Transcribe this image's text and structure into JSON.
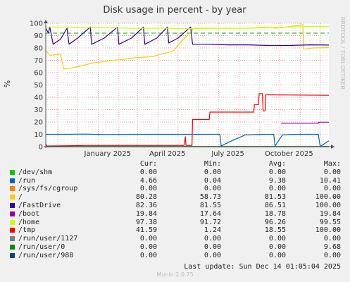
{
  "chart_data": {
    "type": "line",
    "title": "Disk usage in percent - by year",
    "ylabel": "%",
    "side_label": "RRDTOOL / TOBI OETIKER",
    "ylim": [
      0,
      100
    ],
    "yticks": [
      0,
      10,
      20,
      30,
      40,
      50,
      60,
      70,
      80,
      90,
      100
    ],
    "xlim": [
      "2024-10-14",
      "2025-12-14"
    ],
    "xticks": [
      {
        "label": "January 2025",
        "date": "2025-01-15"
      },
      {
        "label": "April 2025",
        "date": "2025-04-15"
      },
      {
        "label": "July 2025",
        "date": "2025-07-15"
      },
      {
        "label": "October 2025",
        "date": "2025-10-15"
      }
    ],
    "warning_line": 92,
    "series": [
      {
        "name": "/dev/shm",
        "color": "#00cc00",
        "points": [
          [
            "2024-10-14",
            0
          ],
          [
            "2025-12-14",
            0
          ]
        ]
      },
      {
        "name": "/run",
        "color": "#0066b3",
        "points": [
          [
            "2024-10-14",
            10
          ],
          [
            "2024-11-10",
            10
          ],
          [
            "2024-12-10",
            10.2
          ],
          [
            "2025-01-15",
            9.8
          ],
          [
            "2025-02-15",
            10
          ],
          [
            "2025-03-20",
            10
          ],
          [
            "2025-04-20",
            10
          ],
          [
            "2025-05-20",
            10
          ],
          [
            "2025-06-20",
            10
          ],
          [
            "2025-07-03",
            10
          ],
          [
            "2025-07-05",
            0.5
          ],
          [
            "2025-07-20",
            4.5
          ],
          [
            "2025-08-10",
            9.5
          ],
          [
            "2025-09-10",
            10
          ],
          [
            "2025-09-22",
            10
          ],
          [
            "2025-09-24",
            0.5
          ],
          [
            "2025-10-05",
            9.5
          ],
          [
            "2025-10-25",
            10
          ],
          [
            "2025-11-20",
            10
          ],
          [
            "2025-11-28",
            10
          ],
          [
            "2025-12-01",
            0.2
          ],
          [
            "2025-12-14",
            4.66
          ]
        ]
      },
      {
        "name": "/sys/fs/cgroup",
        "color": "#ff8000",
        "points": [
          [
            "2024-10-14",
            0
          ],
          [
            "2025-12-14",
            0
          ]
        ]
      },
      {
        "name": "/",
        "color": "#ffcc00",
        "points": [
          [
            "2024-10-14",
            78
          ],
          [
            "2024-10-20",
            74
          ],
          [
            "2024-11-05",
            75
          ],
          [
            "2024-11-10",
            63
          ],
          [
            "2024-11-25",
            64
          ],
          [
            "2024-12-10",
            66
          ],
          [
            "2024-12-25",
            68
          ],
          [
            "2025-01-10",
            69
          ],
          [
            "2025-01-25",
            70
          ],
          [
            "2025-02-10",
            71
          ],
          [
            "2025-02-25",
            72
          ],
          [
            "2025-03-10",
            72.5
          ],
          [
            "2025-03-25",
            73
          ],
          [
            "2025-04-05",
            75
          ],
          [
            "2025-04-15",
            76
          ],
          [
            "2025-04-25",
            78
          ],
          [
            "2025-05-05",
            85
          ],
          [
            "2025-05-15",
            90
          ],
          [
            "2025-05-25",
            96
          ],
          [
            "2025-06-15",
            96
          ],
          [
            "2025-07-15",
            96
          ],
          [
            "2025-08-15",
            96
          ],
          [
            "2025-09-10",
            97
          ],
          [
            "2025-09-25",
            96
          ],
          [
            "2025-10-10",
            97
          ],
          [
            "2025-10-25",
            98
          ],
          [
            "2025-11-05",
            99
          ],
          [
            "2025-11-06",
            79
          ],
          [
            "2025-11-20",
            80
          ],
          [
            "2025-12-14",
            80.28
          ]
        ]
      },
      {
        "name": "/FastDrive",
        "color": "#330099",
        "points": [
          [
            "2024-10-14",
            96
          ],
          [
            "2024-10-18",
            92
          ],
          [
            "2024-10-20",
            97
          ],
          [
            "2024-10-25",
            83
          ],
          [
            "2024-11-05",
            87
          ],
          [
            "2024-11-15",
            96
          ],
          [
            "2024-11-18",
            83
          ],
          [
            "2024-12-01",
            88
          ],
          [
            "2024-12-20",
            97
          ],
          [
            "2024-12-22",
            83
          ],
          [
            "2025-01-10",
            88
          ],
          [
            "2025-01-30",
            97
          ],
          [
            "2025-02-01",
            83
          ],
          [
            "2025-02-20",
            88
          ],
          [
            "2025-03-10",
            97
          ],
          [
            "2025-03-12",
            83
          ],
          [
            "2025-03-30",
            88
          ],
          [
            "2025-04-15",
            97
          ],
          [
            "2025-04-17",
            84
          ],
          [
            "2025-05-01",
            88
          ],
          [
            "2025-05-20",
            97
          ],
          [
            "2025-05-23",
            83
          ],
          [
            "2025-06-15",
            83
          ],
          [
            "2025-07-15",
            82.5
          ],
          [
            "2025-08-15",
            82.5
          ],
          [
            "2025-09-15",
            82
          ],
          [
            "2025-10-15",
            82
          ],
          [
            "2025-11-15",
            82.5
          ],
          [
            "2025-12-14",
            82.36
          ]
        ]
      },
      {
        "name": "/boot",
        "color": "#990099",
        "points": [
          [
            "2025-10-03",
            19
          ],
          [
            "2025-11-28",
            19
          ],
          [
            "2025-11-29",
            19.8
          ],
          [
            "2025-12-14",
            19.84
          ]
        ]
      },
      {
        "name": "/home",
        "color": "#ccff00",
        "points": [
          [
            "2024-10-14",
            97
          ],
          [
            "2024-11-15",
            97
          ],
          [
            "2024-12-15",
            96.5
          ],
          [
            "2025-01-15",
            96.5
          ],
          [
            "2025-02-15",
            96
          ],
          [
            "2025-03-15",
            96
          ],
          [
            "2025-04-15",
            96
          ],
          [
            "2025-05-15",
            95.5
          ],
          [
            "2025-06-15",
            96
          ],
          [
            "2025-07-15",
            96
          ],
          [
            "2025-08-15",
            96
          ],
          [
            "2025-09-15",
            96.5
          ],
          [
            "2025-10-15",
            97
          ],
          [
            "2025-11-15",
            97.5
          ],
          [
            "2025-12-14",
            97.38
          ]
        ]
      },
      {
        "name": "/tmp",
        "color": "#ff0000",
        "points": [
          [
            "2024-10-14",
            2
          ],
          [
            "2024-10-16",
            0.5
          ],
          [
            "2024-12-15",
            1
          ],
          [
            "2025-02-15",
            1
          ],
          [
            "2025-05-10",
            1
          ],
          [
            "2025-05-12",
            8
          ],
          [
            "2025-05-13",
            1
          ],
          [
            "2025-05-22",
            1
          ],
          [
            "2025-05-23",
            22
          ],
          [
            "2025-06-17",
            22
          ],
          [
            "2025-06-18",
            28
          ],
          [
            "2025-08-23",
            28
          ],
          [
            "2025-08-24",
            34
          ],
          [
            "2025-08-30",
            34
          ],
          [
            "2025-08-31",
            43
          ],
          [
            "2025-09-05",
            43
          ],
          [
            "2025-09-06",
            29
          ],
          [
            "2025-09-09",
            29
          ],
          [
            "2025-09-10",
            42
          ],
          [
            "2025-12-14",
            41.59
          ]
        ]
      },
      {
        "name": "/run/user/1127",
        "color": "#808080",
        "points": [
          [
            "2024-10-14",
            0
          ],
          [
            "2025-12-14",
            0
          ]
        ]
      },
      {
        "name": "/run/user/0",
        "color": "#008f00",
        "points": [
          [
            "2024-10-14",
            0
          ],
          [
            "2025-12-14",
            0
          ]
        ]
      },
      {
        "name": "/run/user/988",
        "color": "#00487d",
        "points": [
          [
            "2024-10-14",
            0
          ],
          [
            "2025-12-14",
            0
          ]
        ]
      }
    ]
  },
  "legend": {
    "headers": {
      "cur": "Cur:",
      "min": "Min:",
      "avg": "Avg:",
      "max": "Max:"
    },
    "rows": [
      {
        "name": "/dev/shm",
        "color": "#00cc00",
        "cur": "0.00",
        "min": "0.00",
        "avg": "0.00",
        "max": "0.00"
      },
      {
        "name": "/run",
        "color": "#0066b3",
        "cur": "4.66",
        "min": "0.04",
        "avg": "9.38",
        "max": "10.41"
      },
      {
        "name": "/sys/fs/cgroup",
        "color": "#ff8000",
        "cur": "0.00",
        "min": "0.00",
        "avg": "0.00",
        "max": "0.00"
      },
      {
        "name": "/",
        "color": "#ffcc00",
        "cur": "80.28",
        "min": "58.73",
        "avg": "81.53",
        "max": "100.00"
      },
      {
        "name": "/FastDrive",
        "color": "#330099",
        "cur": "82.36",
        "min": "81.55",
        "avg": "86.51",
        "max": "100.00"
      },
      {
        "name": "/boot",
        "color": "#990099",
        "cur": "19.84",
        "min": "17.64",
        "avg": "18.78",
        "max": "19.84"
      },
      {
        "name": "/home",
        "color": "#ccff00",
        "cur": "97.38",
        "min": "91.72",
        "avg": "96.26",
        "max": "99.55"
      },
      {
        "name": "/tmp",
        "color": "#ff0000",
        "cur": "41.59",
        "min": "1.24",
        "avg": "18.55",
        "max": "100.00"
      },
      {
        "name": "/run/user/1127",
        "color": "#808080",
        "cur": "0.00",
        "min": "0.00",
        "avg": "0.00",
        "max": "0.00"
      },
      {
        "name": "/run/user/0",
        "color": "#008f00",
        "cur": "0.00",
        "min": "0.00",
        "avg": "0.00",
        "max": "9.68"
      },
      {
        "name": "/run/user/988",
        "color": "#00487d",
        "cur": "0.00",
        "min": "0.00",
        "avg": "0.00",
        "max": "0.00"
      }
    ]
  },
  "footer": {
    "last_update": "Last update: Sun Dec 14 01:05:04 2025",
    "version": "Munin 2.0.75"
  }
}
